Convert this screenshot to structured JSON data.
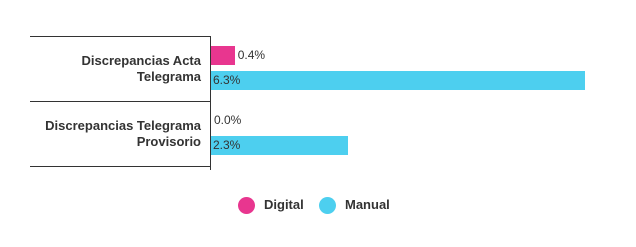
{
  "chart_data": {
    "type": "bar",
    "orientation": "horizontal",
    "categories": [
      "Discrepancias Acta Telegrama",
      "Discrepancias Telegrama Provisorio"
    ],
    "series": [
      {
        "name": "Digital",
        "color": "#e8368f",
        "values": [
          0.4,
          0.0
        ],
        "value_labels": [
          "0.4%",
          "0.0%"
        ]
      },
      {
        "name": "Manual",
        "color": "#4dcfef",
        "values": [
          6.3,
          2.3
        ],
        "value_labels": [
          "6.3%",
          "2.3%"
        ]
      }
    ]
  }
}
